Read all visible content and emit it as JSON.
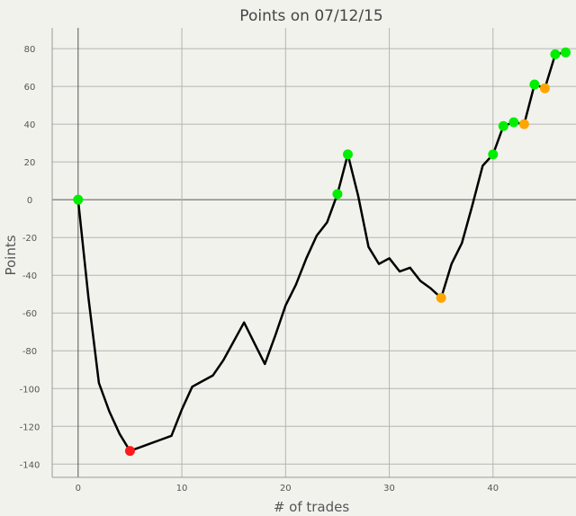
{
  "chart_data": {
    "type": "line",
    "title": "Points on 07/12/15",
    "xlabel": "# of trades",
    "ylabel": "Points",
    "xlim": [
      -2.5,
      48
    ],
    "ylim": [
      -147,
      91
    ],
    "x_ticks": [
      0,
      10,
      20,
      30,
      40
    ],
    "y_ticks": [
      80,
      60,
      40,
      20,
      0,
      -20,
      -40,
      -60,
      -80,
      -100,
      -120,
      -140
    ],
    "grid": true,
    "series": [
      {
        "x": [
          0,
          1,
          2,
          3,
          4,
          5,
          6,
          7,
          8,
          9,
          10,
          11,
          12,
          13,
          14,
          15,
          16,
          17,
          18,
          19,
          20,
          21,
          22,
          23,
          24,
          25,
          26,
          27,
          28,
          29,
          30,
          31,
          32,
          33,
          34,
          35,
          36,
          37,
          38,
          39,
          40,
          41,
          42,
          43,
          44,
          45,
          46,
          47
        ],
        "y": [
          0,
          -52,
          -97,
          -112,
          -124,
          -133,
          -131,
          -129,
          -127,
          -125,
          -111,
          -99,
          -96,
          -93,
          -85,
          -75,
          -65,
          -76,
          -87,
          -72,
          -56,
          -45,
          -31,
          -19,
          -12,
          3,
          24,
          2,
          -25,
          -34,
          -31,
          -38,
          -36,
          -43,
          -47,
          -52,
          -34,
          -23,
          -3,
          18,
          24,
          39,
          41,
          40,
          61,
          59,
          77,
          78
        ]
      }
    ],
    "markers": [
      {
        "x": 0,
        "y": 0,
        "color": "#00ee00"
      },
      {
        "x": 5,
        "y": -133,
        "color": "#ff1a1a"
      },
      {
        "x": 25,
        "y": 3,
        "color": "#00ee00"
      },
      {
        "x": 26,
        "y": 24,
        "color": "#00ee00"
      },
      {
        "x": 35,
        "y": -52,
        "color": "#ffa500"
      },
      {
        "x": 40,
        "y": 24,
        "color": "#00ee00"
      },
      {
        "x": 41,
        "y": 39,
        "color": "#00ee00"
      },
      {
        "x": 42,
        "y": 41,
        "color": "#00ee00"
      },
      {
        "x": 43,
        "y": 40,
        "color": "#ffa500"
      },
      {
        "x": 44,
        "y": 61,
        "color": "#00ee00"
      },
      {
        "x": 45,
        "y": 59,
        "color": "#ffa500"
      },
      {
        "x": 46,
        "y": 77,
        "color": "#00ee00"
      },
      {
        "x": 47,
        "y": 78,
        "color": "#00ee00"
      }
    ],
    "colors": {
      "line": "#000000",
      "grid": "#b4b4b4",
      "zero_line": "#555555",
      "frame": "#999999",
      "background": "#f2f2ed"
    }
  }
}
